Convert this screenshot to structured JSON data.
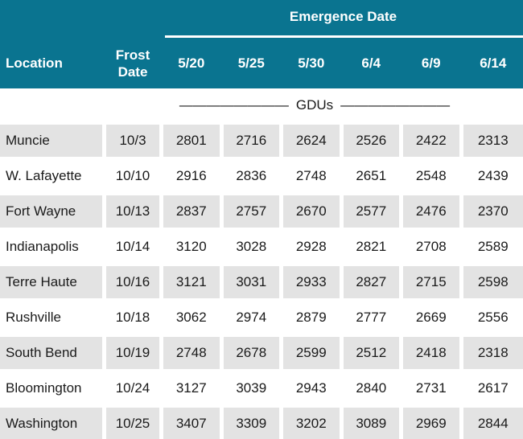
{
  "table": {
    "emergence_header": "Emergence Date",
    "columns": {
      "location": "Location",
      "frost_date": "Frost Date",
      "dates": [
        "5/20",
        "5/25",
        "5/30",
        "6/4",
        "6/9",
        "6/14"
      ]
    },
    "units_label": "GDUs",
    "units_dash_run": "————————",
    "rows": [
      {
        "location": "Muncie",
        "frost_date": "10/3",
        "gdus": [
          "2801",
          "2716",
          "2624",
          "2526",
          "2422",
          "2313"
        ]
      },
      {
        "location": "W. Lafayette",
        "frost_date": "10/10",
        "gdus": [
          "2916",
          "2836",
          "2748",
          "2651",
          "2548",
          "2439"
        ]
      },
      {
        "location": "Fort Wayne",
        "frost_date": "10/13",
        "gdus": [
          "2837",
          "2757",
          "2670",
          "2577",
          "2476",
          "2370"
        ]
      },
      {
        "location": "Indianapolis",
        "frost_date": "10/14",
        "gdus": [
          "3120",
          "3028",
          "2928",
          "2821",
          "2708",
          "2589"
        ]
      },
      {
        "location": "Terre Haute",
        "frost_date": "10/16",
        "gdus": [
          "3121",
          "3031",
          "2933",
          "2827",
          "2715",
          "2598"
        ]
      },
      {
        "location": "Rushville",
        "frost_date": "10/18",
        "gdus": [
          "3062",
          "2974",
          "2879",
          "2777",
          "2669",
          "2556"
        ]
      },
      {
        "location": "South Bend",
        "frost_date": "10/19",
        "gdus": [
          "2748",
          "2678",
          "2599",
          "2512",
          "2418",
          "2318"
        ]
      },
      {
        "location": "Bloomington",
        "frost_date": "10/24",
        "gdus": [
          "3127",
          "3039",
          "2943",
          "2840",
          "2731",
          "2617"
        ]
      },
      {
        "location": "Washington",
        "frost_date": "10/25",
        "gdus": [
          "3407",
          "3309",
          "3202",
          "3089",
          "2969",
          "2844"
        ]
      }
    ]
  },
  "colors": {
    "header_bg": "#0a7490",
    "header_text": "#ffffff",
    "row_alt_bg": "#e3e3e3",
    "body_text": "#1a1a1a"
  },
  "chart_data": {
    "type": "table",
    "title": "Emergence Date",
    "units": "GDUs",
    "column_headers": [
      "Location",
      "Frost Date",
      "5/20",
      "5/25",
      "5/30",
      "6/4",
      "6/9",
      "6/14"
    ],
    "rows": [
      [
        "Muncie",
        "10/3",
        2801,
        2716,
        2624,
        2526,
        2422,
        2313
      ],
      [
        "W. Lafayette",
        "10/10",
        2916,
        2836,
        2748,
        2651,
        2548,
        2439
      ],
      [
        "Fort Wayne",
        "10/13",
        2837,
        2757,
        2670,
        2577,
        2476,
        2370
      ],
      [
        "Indianapolis",
        "10/14",
        3120,
        3028,
        2928,
        2821,
        2708,
        2589
      ],
      [
        "Terre Haute",
        "10/16",
        3121,
        3031,
        2933,
        2827,
        2715,
        2598
      ],
      [
        "Rushville",
        "10/18",
        3062,
        2974,
        2879,
        2777,
        2669,
        2556
      ],
      [
        "South Bend",
        "10/19",
        2748,
        2678,
        2599,
        2512,
        2418,
        2318
      ],
      [
        "Bloomington",
        "10/24",
        3127,
        3039,
        2943,
        2840,
        2731,
        2617
      ],
      [
        "Washington",
        "10/25",
        3407,
        3309,
        3202,
        3089,
        2969,
        2844
      ]
    ]
  }
}
